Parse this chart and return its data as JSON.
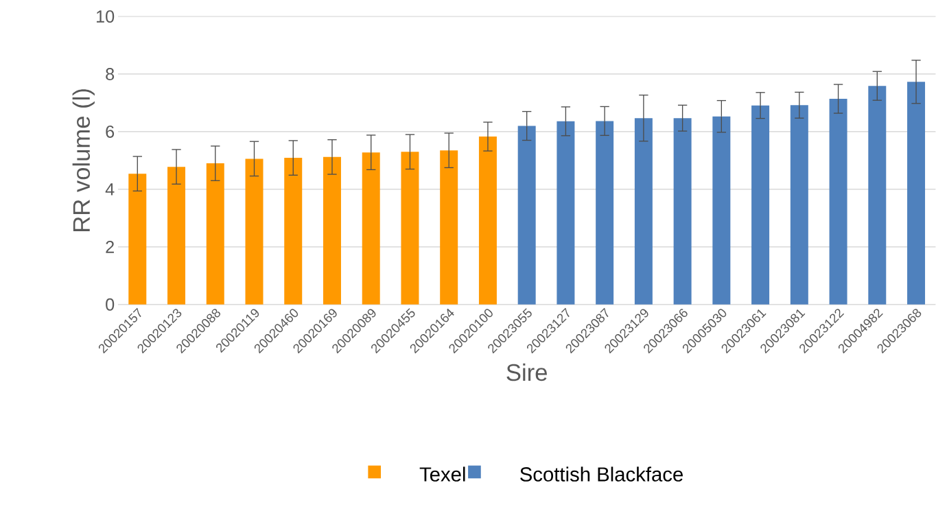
{
  "chart_data": {
    "type": "bar",
    "xlabel": "Sire",
    "ylabel": "RR volume (l)",
    "categories": [
      "20020157",
      "20020123",
      "20020088",
      "20020119",
      "20020460",
      "20020169",
      "20020089",
      "20020455",
      "20020164",
      "20020100",
      "20023055",
      "20023127",
      "20023087",
      "20023129",
      "20023066",
      "20005030",
      "20023061",
      "20023081",
      "20023122",
      "20004982",
      "20023068"
    ],
    "series": [
      {
        "name": "Texel",
        "color": "#ff9900",
        "values": [
          4.54,
          4.78,
          4.9,
          5.06,
          5.09,
          5.12,
          5.28,
          5.3,
          5.35,
          5.83,
          null,
          null,
          null,
          null,
          null,
          null,
          null,
          null,
          null,
          null,
          null
        ],
        "errors": [
          0.6,
          0.6,
          0.6,
          0.6,
          0.6,
          0.6,
          0.6,
          0.6,
          0.6,
          0.5,
          null,
          null,
          null,
          null,
          null,
          null,
          null,
          null,
          null,
          null,
          null
        ]
      },
      {
        "name": "Scottish Blackface",
        "color": "#4f81bd",
        "values": [
          null,
          null,
          null,
          null,
          null,
          null,
          null,
          null,
          null,
          null,
          6.2,
          6.36,
          6.37,
          6.47,
          6.47,
          6.53,
          6.91,
          6.92,
          7.14,
          7.59,
          7.73
        ],
        "errors": [
          null,
          null,
          null,
          null,
          null,
          null,
          null,
          null,
          null,
          null,
          0.5,
          0.5,
          0.5,
          0.8,
          0.45,
          0.55,
          0.45,
          0.45,
          0.5,
          0.5,
          0.75
        ]
      }
    ],
    "ylim": [
      0,
      10
    ],
    "yticks": [
      0,
      2,
      4,
      6,
      8,
      10
    ],
    "grid": "y",
    "legend": "bottom"
  }
}
